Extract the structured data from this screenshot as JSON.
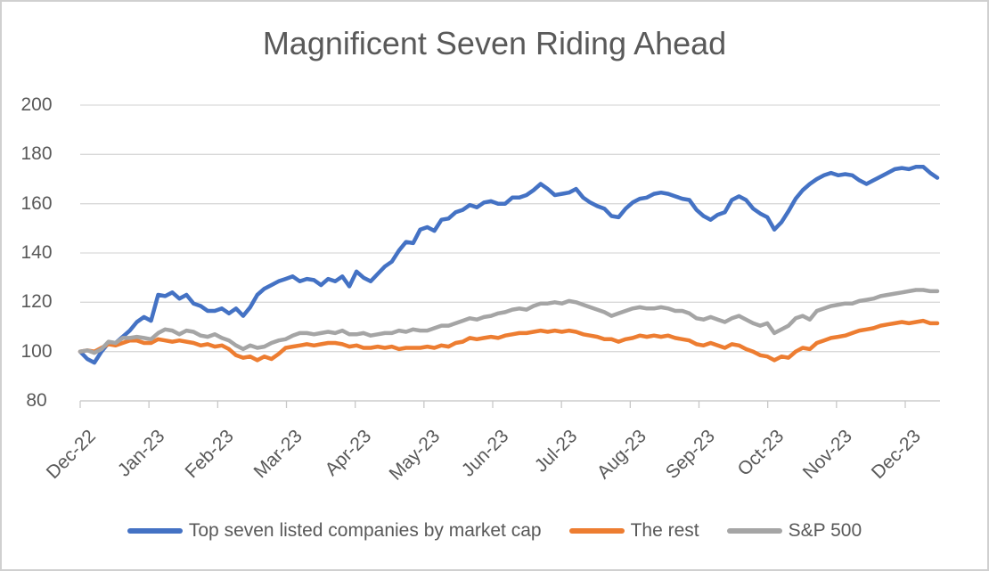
{
  "chart_data": {
    "type": "line",
    "title": "Magnificent Seven Riding Ahead",
    "x_tick_labels": [
      "Dec-22",
      "Jan-23",
      "Feb-23",
      "Mar-23",
      "Apr-23",
      "May-23",
      "Jun-23",
      "Jul-23",
      "Aug-23",
      "Sep-23",
      "Oct-23",
      "Nov-23",
      "Dec-23"
    ],
    "y_ticks": [
      200,
      180,
      160,
      140,
      120,
      100,
      80
    ],
    "ylim": [
      80,
      200
    ],
    "grid": "horizontal-only",
    "legend_position": "bottom",
    "series": [
      {
        "name": "Top seven listed companies by market cap",
        "color": "#4472C4",
        "values": [
          100,
          97,
          95.5,
          100,
          103.5,
          103.5,
          106,
          108.5,
          112,
          114,
          112.5,
          123,
          122.5,
          124,
          121.5,
          123,
          119.5,
          118.5,
          116.5,
          116.5,
          117.5,
          115.5,
          117.5,
          114.5,
          118,
          123,
          125.5,
          127,
          128.5,
          129.5,
          130.5,
          128.5,
          129.5,
          129,
          127,
          129.5,
          128.5,
          130.5,
          126.5,
          132.5,
          130,
          128.5,
          131.5,
          134.5,
          136.5,
          141,
          144.5,
          144,
          149.5,
          150.5,
          149,
          153.5,
          154,
          156.5,
          157.5,
          159.5,
          158.5,
          160.5,
          161,
          160,
          160,
          162.5,
          162.5,
          163.5,
          165.5,
          168,
          166,
          163.5,
          164,
          164.5,
          166,
          162.5,
          160.5,
          159,
          158,
          155,
          154.5,
          158,
          160.5,
          162,
          162.5,
          164,
          164.5,
          164,
          163,
          162,
          161.5,
          157.5,
          155,
          153.5,
          155.5,
          156.5,
          161.5,
          163,
          161.5,
          158,
          156,
          154.5,
          149.5,
          152.5,
          157,
          162,
          165.5,
          168,
          170,
          171.5,
          172.5,
          171.5,
          172,
          171.5,
          169.5,
          168,
          169.5,
          171,
          172.5,
          174,
          174.5,
          174,
          175,
          175,
          172.5,
          170.5
        ]
      },
      {
        "name": "The rest",
        "color": "#ED7D31",
        "values": [
          100,
          100.5,
          100,
          101.5,
          103,
          102.5,
          103.5,
          104.5,
          104.5,
          103.5,
          103.5,
          105,
          104.5,
          104,
          104.5,
          104,
          103.5,
          102.5,
          103,
          102,
          102.5,
          101,
          98.5,
          97.5,
          98,
          96.5,
          98,
          97,
          99,
          101.5,
          102,
          102.5,
          103,
          102.5,
          103,
          103.5,
          103.5,
          103,
          102,
          102.5,
          101.5,
          101.5,
          102,
          101.5,
          102,
          101,
          101.5,
          101.5,
          101.5,
          102,
          101.5,
          102.5,
          102,
          103.5,
          104,
          105.5,
          105,
          105.5,
          106,
          105.5,
          106.5,
          107,
          107.5,
          107.5,
          108,
          108.5,
          108,
          108.5,
          108,
          108.5,
          108,
          107,
          106.5,
          106,
          105,
          105,
          104,
          105,
          105.5,
          106.5,
          106,
          106.5,
          106,
          106.5,
          105.5,
          105,
          104.5,
          103,
          102.5,
          103.5,
          102.5,
          101.5,
          103,
          102.5,
          101,
          100,
          98.5,
          98,
          96.5,
          98,
          97.5,
          100,
          101.5,
          101,
          103.5,
          104.5,
          105.5,
          106,
          106.5,
          107.5,
          108.5,
          109,
          109.5,
          110.5,
          111,
          111.5,
          112,
          111.5,
          112,
          112.5,
          111.5,
          111.5
        ]
      },
      {
        "name": "S&P 500",
        "color": "#A5A5A5",
        "values": [
          100,
          100.5,
          99.5,
          101,
          104,
          103.5,
          105.5,
          105.5,
          106,
          105.5,
          105,
          107.5,
          109,
          108.5,
          107,
          108.5,
          108,
          106.5,
          106,
          107,
          105.5,
          104.5,
          102.5,
          101,
          102.5,
          101.5,
          102,
          103.5,
          104.5,
          105,
          106.5,
          107.5,
          107.5,
          107,
          107.5,
          108,
          107.5,
          108.5,
          107,
          107,
          107.5,
          106.5,
          107,
          107.5,
          107.5,
          108.5,
          108,
          109,
          108.5,
          108.5,
          109.5,
          110.5,
          110.5,
          111.5,
          112.5,
          113.5,
          113,
          114,
          114.5,
          115.5,
          116,
          117,
          117.5,
          117,
          118.5,
          119.5,
          119.5,
          120,
          119.5,
          120.5,
          120,
          119,
          118,
          117,
          116,
          114.5,
          115.5,
          116.5,
          117.5,
          118,
          117.5,
          117.5,
          118,
          117.5,
          116.5,
          116.5,
          115.5,
          113.5,
          113,
          114,
          113,
          112,
          113.5,
          114.5,
          113,
          111.5,
          110.5,
          111.5,
          107.5,
          109,
          110.5,
          113.5,
          114.5,
          113,
          116.5,
          117.5,
          118.5,
          119,
          119.5,
          119.5,
          120.5,
          121,
          121.5,
          122.5,
          123,
          123.5,
          124,
          124.5,
          125,
          125,
          124.5,
          124.5
        ]
      }
    ]
  }
}
